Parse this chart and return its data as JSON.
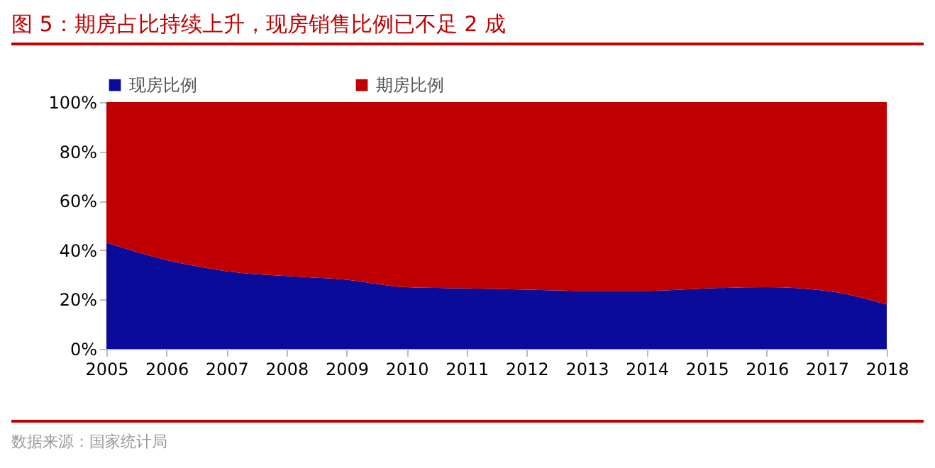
{
  "chart_data": {
    "type": "area",
    "title": "图 5：期房占比持续上升，现房销售比例已不足 2 成",
    "categories": [
      "2005",
      "2006",
      "2007",
      "2008",
      "2009",
      "2010",
      "2011",
      "2012",
      "2013",
      "2014",
      "2015",
      "2016",
      "2017",
      "2018"
    ],
    "series": [
      {
        "name": "现房比例",
        "color": "#0b0b99",
        "values": [
          43,
          36,
          31.5,
          29.5,
          28,
          25,
          24.5,
          24,
          23.5,
          23.5,
          24.5,
          25,
          23.5,
          18
        ]
      },
      {
        "name": "期房比例",
        "color": "#c00000",
        "values": [
          57,
          64,
          68.5,
          70.5,
          72,
          75,
          75.5,
          76,
          76.5,
          76.5,
          75.5,
          75,
          76.5,
          82
        ]
      }
    ],
    "stacked": true,
    "ylim": [
      0,
      100
    ],
    "yticks": [
      {
        "value": 0,
        "label": "0%"
      },
      {
        "value": 20,
        "label": "20%"
      },
      {
        "value": 40,
        "label": "40%"
      },
      {
        "value": 60,
        "label": "60%"
      },
      {
        "value": 80,
        "label": "80%"
      },
      {
        "value": 100,
        "label": "100%"
      }
    ],
    "legend": "top",
    "grid": false,
    "annotations": [
      "数据来源：国家统计局"
    ]
  }
}
